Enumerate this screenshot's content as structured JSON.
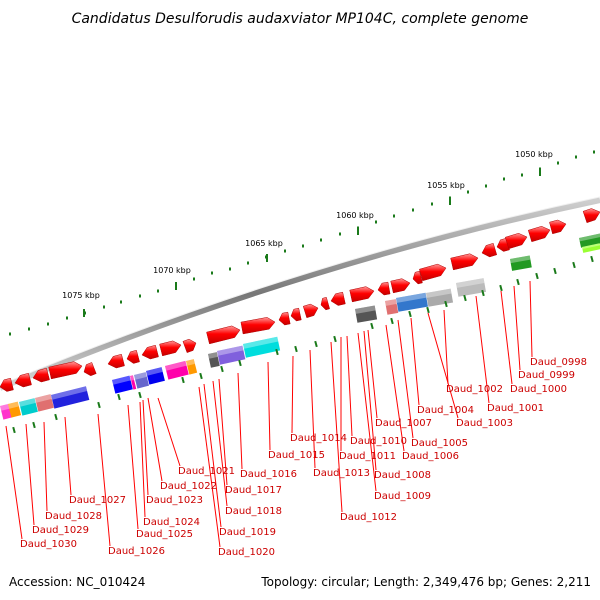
{
  "title": "Candidatus Desulforudis audaxviator MP104C, complete genome",
  "footer": {
    "accession": "Accession: NC_010424",
    "topology": "Topology: circular; Length: 2,349,476 bp; Genes: 2,211"
  },
  "kbp_labels": [
    "1050 kbp",
    "1055 kbp",
    "1060 kbp",
    "1065 kbp",
    "1070 kbp",
    "1075 kbp"
  ],
  "gene_labels": [
    "Daud_0998",
    "Daud_0999",
    "Daud_1000",
    "Daud_1001",
    "Daud_1002",
    "Daud_1003",
    "Daud_1004",
    "Daud_1005",
    "Daud_1006",
    "Daud_1007",
    "Daud_1008",
    "Daud_1009",
    "Daud_1010",
    "Daud_1011",
    "Daud_1012",
    "Daud_1013",
    "Daud_1014",
    "Daud_1015",
    "Daud_1016",
    "Daud_1017",
    "Daud_1018",
    "Daud_1019",
    "Daud_1020",
    "Daud_1021",
    "Daud_1022",
    "Daud_1023",
    "Daud_1024",
    "Daud_1025",
    "Daud_1026",
    "Daud_1027",
    "Daud_1028",
    "Daud_1029",
    "Daud_1030"
  ],
  "colors": {
    "gene_red": "#ff0000",
    "label_red": "#cc0000",
    "tick_green": "#1a7a1a",
    "backbone_gray": "#888888"
  }
}
